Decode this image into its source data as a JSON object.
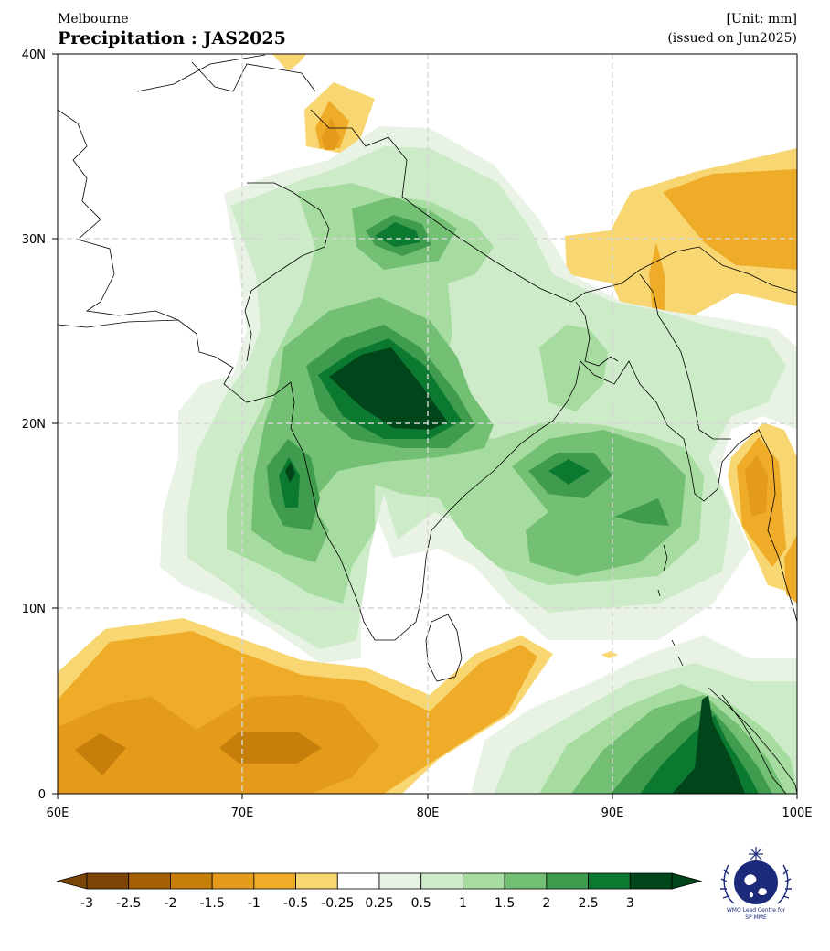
{
  "header": {
    "source": "Melbourne",
    "title": "Precipitation : JAS2025",
    "unit": "[Unit: mm]",
    "issued": "(issued on Jun2025)"
  },
  "map": {
    "lon_range": [
      60,
      100
    ],
    "lat_range": [
      0,
      40
    ],
    "x_ticks": [
      "60E",
      "70E",
      "80E",
      "90E",
      "100E"
    ],
    "y_ticks": [
      "0",
      "10N",
      "20N",
      "30N",
      "40N"
    ],
    "grid": true
  },
  "colorbar": {
    "labels": [
      "-3",
      "-2.5",
      "-2",
      "-1.5",
      "-1",
      "-0.5",
      "-0.25",
      "0.25",
      "0.5",
      "1",
      "1.5",
      "2",
      "2.5",
      "3"
    ],
    "colors": [
      "#7a4505",
      "#a55f07",
      "#c77f0c",
      "#e49a1a",
      "#eeac29",
      "#f8d672",
      "#ffffff",
      "#e8f3e5",
      "#cdebc8",
      "#a7dca0",
      "#73bf73",
      "#3f9b4d",
      "#0b7a30",
      "#00461a"
    ],
    "extend": "both"
  },
  "logo": {
    "text_line1": "WMO Lead Centre for",
    "text_line2": "SP MME"
  }
}
